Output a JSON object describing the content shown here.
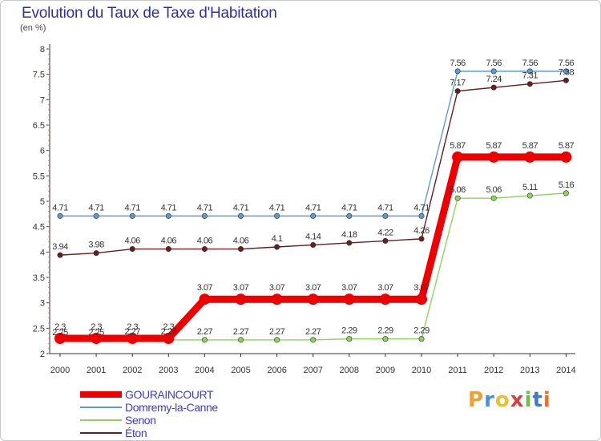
{
  "title": "Evolution du Taux de Taxe d'Habitation",
  "unit": "(en %)",
  "logo": {
    "text": "Proxiti",
    "colors": [
      "#f0a030",
      "#4a90d9",
      "#e8c030",
      "#d84040",
      "#6cc040",
      "#3a7bd5",
      "#e87030"
    ]
  },
  "chart_data": {
    "type": "line",
    "x": [
      "2000",
      "2001",
      "2002",
      "2003",
      "2004",
      "2005",
      "2006",
      "2007",
      "2008",
      "2009",
      "2010",
      "2011",
      "2012",
      "2013",
      "2014"
    ],
    "ylim": [
      2,
      8
    ],
    "yticks": [
      "2",
      "2.5",
      "3",
      "3.5",
      "4",
      "4.5",
      "5",
      "5.5",
      "6",
      "6.5",
      "7",
      "7.5",
      "8"
    ],
    "grid": false,
    "legend_position": "bottom-left",
    "series": [
      {
        "name": "Domremy-la-Canne",
        "color": "#5b9bd5",
        "values": [
          4.71,
          4.71,
          4.71,
          4.71,
          4.71,
          4.71,
          4.71,
          4.71,
          4.71,
          4.71,
          4.71,
          7.56,
          7.56,
          7.56,
          7.56
        ],
        "labels": [
          "4.71",
          "4.71",
          "4.71",
          "4.71",
          "4.71",
          "4.71",
          "4.71",
          "4.71",
          "4.71",
          "4.71",
          "4.71",
          "7.56",
          "7.56",
          "7.56",
          "7.56"
        ]
      },
      {
        "name": "Éton",
        "color": "#6b1c1c",
        "values": [
          3.94,
          3.98,
          4.06,
          4.06,
          4.06,
          4.06,
          4.1,
          4.14,
          4.18,
          4.22,
          4.26,
          7.17,
          7.24,
          7.31,
          7.38
        ],
        "labels": [
          "3.94",
          "3.98",
          "4.06",
          "4.06",
          "4.06",
          "4.06",
          "4.1",
          "4.14",
          "4.18",
          "4.22",
          "4.26",
          "7.17",
          "7.24",
          "7.31",
          "7.38"
        ]
      },
      {
        "name": "Senon",
        "color": "#8fd45a",
        "values": [
          2.25,
          2.25,
          2.27,
          2.27,
          2.27,
          2.27,
          2.27,
          2.27,
          2.29,
          2.29,
          2.29,
          5.06,
          5.06,
          5.11,
          5.16
        ],
        "labels": [
          "2.25",
          "2.25",
          "2.27",
          "2.27",
          "2.27",
          "2.27",
          "2.27",
          "2.27",
          "2.29",
          "2.29",
          "2.29",
          "5.06",
          "5.06",
          "5.11",
          "5.16"
        ]
      },
      {
        "name": "GOURAINCOURT",
        "color": "#ee0000",
        "values": [
          2.3,
          2.3,
          2.3,
          2.3,
          3.07,
          3.07,
          3.07,
          3.07,
          3.07,
          3.07,
          3.07,
          5.87,
          5.87,
          5.87,
          5.87
        ],
        "labels": [
          "2.3",
          "2.3",
          "2.3",
          "2.3",
          "3.07",
          "3.07",
          "3.07",
          "3.07",
          "3.07",
          "3.07",
          "3.07",
          "5.87",
          "5.87",
          "5.87",
          "5.87"
        ]
      }
    ],
    "legend_order": [
      "GOURAINCOURT",
      "Domremy-la-Canne",
      "Senon",
      "Éton"
    ]
  }
}
